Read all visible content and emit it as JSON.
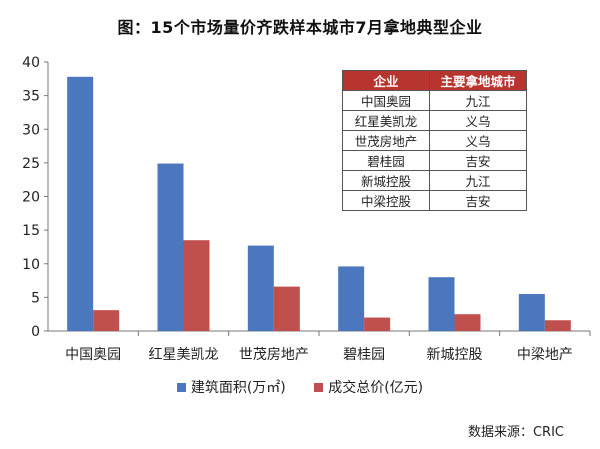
{
  "chart_data": {
    "type": "bar",
    "title": "图：15个市场量价齐跌样本城市7月拿地典型企业",
    "categories": [
      "中国奥园",
      "红星美凯龙",
      "世茂房地产",
      "碧桂园",
      "新城控股",
      "中梁地产"
    ],
    "series": [
      {
        "name": "建筑面积(万㎡)",
        "color": "#4a77bd",
        "values": [
          37.8,
          24.9,
          12.7,
          9.6,
          8.0,
          5.5
        ]
      },
      {
        "name": "成交总价(亿元)",
        "color": "#c0504d",
        "values": [
          3.1,
          13.5,
          6.6,
          2.0,
          2.5,
          1.6
        ]
      }
    ],
    "ylim": [
      0,
      40
    ],
    "yticks": [
      "0",
      "5",
      "10",
      "15",
      "20",
      "25",
      "30",
      "35",
      "40"
    ],
    "grid": false,
    "legend": "bottom"
  },
  "table": {
    "headers": [
      "企业",
      "主要拿地城市"
    ],
    "rows": [
      [
        "中国奥园",
        "九江"
      ],
      [
        "红星美凯龙",
        "义乌"
      ],
      [
        "世茂房地产",
        "义乌"
      ],
      [
        "碧桂园",
        "吉安"
      ],
      [
        "新城控股",
        "九江"
      ],
      [
        "中梁控股",
        "吉安"
      ]
    ]
  },
  "source": "数据来源：CRIC"
}
